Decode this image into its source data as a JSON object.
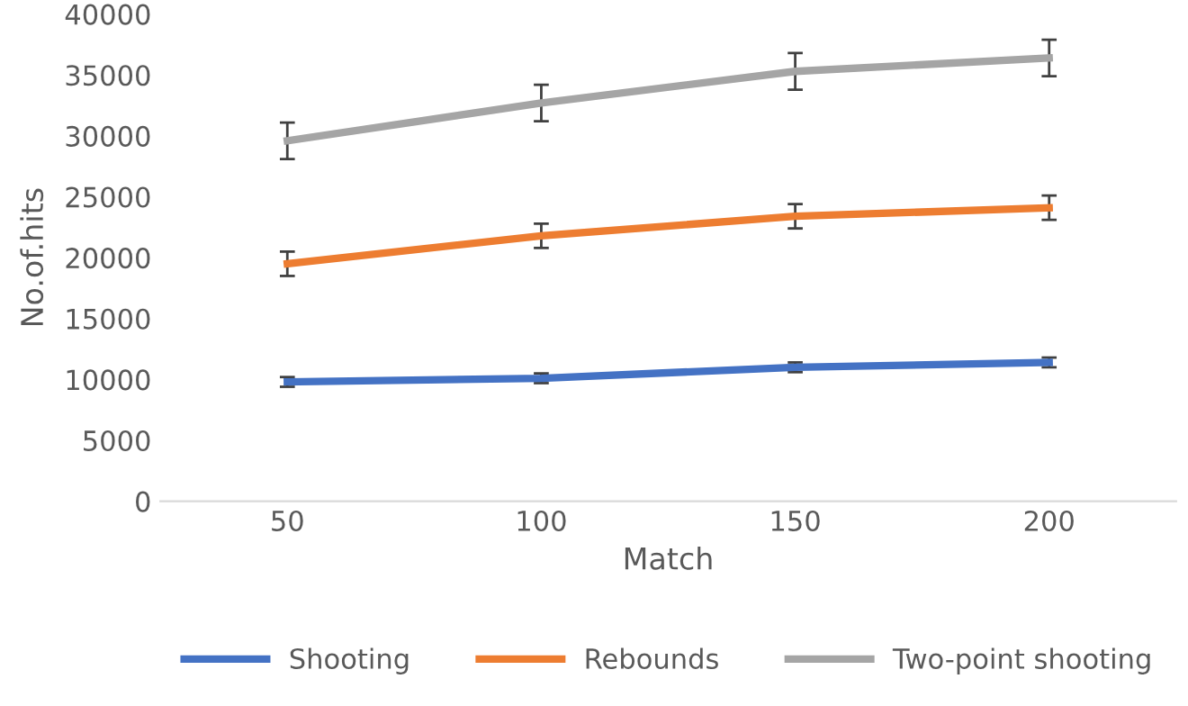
{
  "chart_data": {
    "type": "line",
    "xlabel": "Match",
    "ylabel": "No.of.hits",
    "categories": [
      "50",
      "100",
      "150",
      "200"
    ],
    "series": [
      {
        "name": "Shooting",
        "color": "#4472c4",
        "values": [
          9800,
          10100,
          11000,
          11400
        ],
        "errors": [
          400,
          400,
          400,
          400
        ]
      },
      {
        "name": "Rebounds",
        "color": "#ed7d31",
        "values": [
          19500,
          21800,
          23400,
          24100
        ],
        "errors": [
          1000,
          1000,
          1000,
          1000
        ]
      },
      {
        "name": "Two-point shooting",
        "color": "#a5a5a5",
        "values": [
          29600,
          32700,
          35300,
          36400
        ],
        "errors": [
          1500,
          1500,
          1500,
          1500
        ]
      }
    ],
    "ylim": [
      0,
      40000
    ],
    "yticks": [
      0,
      5000,
      10000,
      15000,
      20000,
      25000,
      30000,
      35000,
      40000
    ],
    "grid": false,
    "legend": "bottom",
    "marker": "none",
    "line_style": "solid"
  }
}
